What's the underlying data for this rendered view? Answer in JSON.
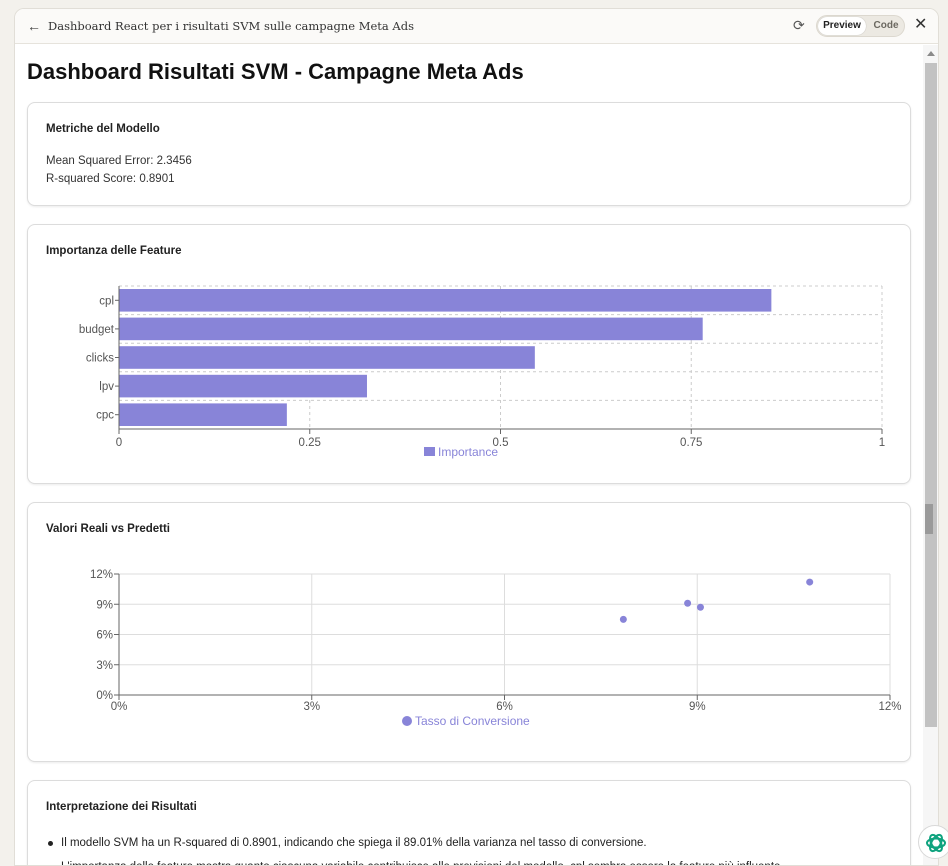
{
  "window": {
    "title": "Dashboard React per i risultati SVM sulle campagne Meta Ads",
    "tabs": {
      "preview": "Preview",
      "code": "Code"
    },
    "icons": {
      "back": "arrow-left-icon",
      "refresh": "refresh-icon",
      "close": "close-icon"
    }
  },
  "page": {
    "title": "Dashboard Risultati SVM - Campagne Meta Ads"
  },
  "metrics_card": {
    "title": "Metriche del Modello",
    "mse": "Mean Squared Error: 2.3456",
    "r2": "R-squared Score: 0.8901"
  },
  "feature_card": {
    "title": "Importanza delle Feature"
  },
  "scatter_card": {
    "title": "Valori Reali vs Predetti"
  },
  "interpretation_card": {
    "title": "Interpretazione dei Risultati",
    "items": [
      "Il modello SVM ha un R-squared di 0.8901, indicando che spiega il 89.01% della varianza nel tasso di conversione.",
      "L'importanza delle feature mostra quanto ciascuna variabile contribuisce alle previsioni del modello, cpl sembra essere la feature più influente."
    ]
  },
  "chart_data": [
    {
      "type": "bar",
      "orientation": "horizontal",
      "categories": [
        "cpl",
        "budget",
        "clicks",
        "lpv",
        "cpc"
      ],
      "series": [
        {
          "name": "Importance",
          "values": [
            0.855,
            0.765,
            0.545,
            0.325,
            0.22
          ]
        }
      ],
      "xlim": [
        0,
        1
      ],
      "xticks": [
        "0",
        "0.25",
        "0.5",
        "0.75",
        "1"
      ],
      "grid": true,
      "legend": "bottom",
      "color": "#8884d8"
    },
    {
      "type": "scatter",
      "series": [
        {
          "name": "Tasso di Conversione",
          "points": [
            {
              "x": 7.85,
              "y": 7.5
            },
            {
              "x": 8.85,
              "y": 9.1
            },
            {
              "x": 9.05,
              "y": 8.7
            },
            {
              "x": 10.75,
              "y": 11.2
            }
          ]
        }
      ],
      "xlim": [
        0,
        12
      ],
      "ylim": [
        0,
        12
      ],
      "xticks": [
        "0%",
        "3%",
        "6%",
        "9%",
        "12%"
      ],
      "yticks": [
        "0%",
        "3%",
        "6%",
        "9%",
        "12%"
      ],
      "grid": true,
      "legend": "bottom",
      "color": "#8884d8"
    }
  ]
}
